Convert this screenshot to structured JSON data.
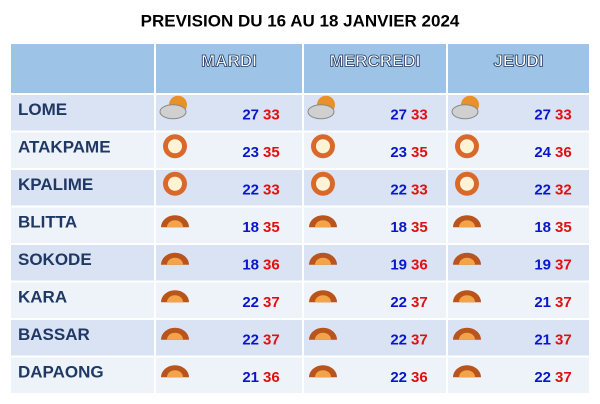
{
  "title": "PREVISION DU 16 AU 18 JANVIER 2024",
  "table": {
    "columns": [
      "MARDI",
      "MERCREDI",
      "JEUDI"
    ],
    "rows": [
      {
        "city": "LOME",
        "days": [
          {
            "min": 27,
            "max": 33
          },
          {
            "min": 27,
            "max": 33
          },
          {
            "min": 27,
            "max": 33
          }
        ]
      },
      {
        "city": "ATAKPAME",
        "days": [
          {
            "min": 23,
            "max": 35
          },
          {
            "min": 23,
            "max": 35
          },
          {
            "min": 24,
            "max": 36
          }
        ]
      },
      {
        "city": "KPALIME",
        "days": [
          {
            "min": 22,
            "max": 33
          },
          {
            "min": 22,
            "max": 33
          },
          {
            "min": 22,
            "max": 32
          }
        ]
      },
      {
        "city": "BLITTA",
        "days": [
          {
            "min": 18,
            "max": 35
          },
          {
            "min": 18,
            "max": 35
          },
          {
            "min": 18,
            "max": 35
          }
        ]
      },
      {
        "city": "SOKODE",
        "days": [
          {
            "min": 18,
            "max": 36
          },
          {
            "min": 19,
            "max": 36
          },
          {
            "min": 19,
            "max": 37
          }
        ]
      },
      {
        "city": "KARA",
        "days": [
          {
            "min": 22,
            "max": 37
          },
          {
            "min": 22,
            "max": 37
          },
          {
            "min": 21,
            "max": 37
          }
        ]
      },
      {
        "city": "BASSAR",
        "days": [
          {
            "min": 22,
            "max": 37
          },
          {
            "min": 22,
            "max": 37
          },
          {
            "min": 21,
            "max": 37
          }
        ]
      },
      {
        "city": "DAPAONG",
        "days": [
          {
            "min": 21,
            "max": 36
          },
          {
            "min": 22,
            "max": 36
          },
          {
            "min": 22,
            "max": 37
          }
        ]
      }
    ]
  }
}
